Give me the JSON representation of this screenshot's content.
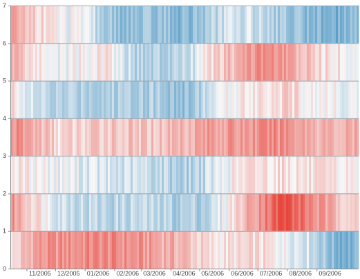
{
  "chart_data": {
    "type": "heatmap",
    "title": "",
    "xlabel": "",
    "ylabel": "",
    "ylim": [
      0,
      7
    ],
    "y_ticks": [
      "0",
      "1",
      "2",
      "3",
      "4",
      "5",
      "6",
      "7"
    ],
    "x_ticks": [
      "11/2005",
      "12/2005",
      "01/2006",
      "02/2006",
      "03/2006",
      "04/2006",
      "05/2006",
      "06/2006",
      "07/2006",
      "08/2006",
      "09/2006"
    ],
    "x_range": [
      "2005-10-15",
      "2006-10-15"
    ],
    "grid": false,
    "legend": "none",
    "colorscale": {
      "negative": "#e8453c",
      "neutral": "#f7f7f7",
      "positive": "#2b83ba"
    },
    "bands": [
      {
        "y_from": 0,
        "y_to": 1,
        "anchors": [
          0.05,
          0.5,
          0.55,
          0.6,
          0.6,
          0.55,
          0.45,
          0.35,
          0.1,
          0.1,
          0.15,
          0.0,
          -0.15,
          -0.55,
          -0.6
        ]
      },
      {
        "y_from": 1,
        "y_to": 2,
        "anchors": [
          0.55,
          0.2,
          -0.15,
          -0.25,
          -0.3,
          -0.25,
          -0.3,
          -0.35,
          -0.3,
          0.15,
          0.6,
          0.95,
          0.65,
          0.35,
          0.25
        ]
      },
      {
        "y_from": 2,
        "y_to": 3,
        "anchors": [
          0.1,
          0.05,
          -0.05,
          -0.1,
          -0.2,
          -0.2,
          -0.25,
          -0.35,
          -0.2,
          0.05,
          0.15,
          0.15,
          0.1,
          0.05,
          0.05
        ]
      },
      {
        "y_from": 3,
        "y_to": 4,
        "anchors": [
          0.6,
          0.4,
          0.15,
          0.2,
          0.3,
          0.25,
          0.3,
          0.4,
          0.5,
          0.5,
          0.55,
          0.6,
          0.45,
          0.35,
          0.4
        ]
      },
      {
        "y_from": 4,
        "y_to": 5,
        "anchors": [
          0.2,
          -0.25,
          -0.35,
          -0.3,
          -0.35,
          -0.3,
          -0.35,
          -0.5,
          -0.2,
          0.05,
          0.15,
          0.2,
          0.05,
          0.0,
          -0.05
        ]
      },
      {
        "y_from": 5,
        "y_to": 6,
        "anchors": [
          0.45,
          0.1,
          -0.05,
          0.05,
          0.1,
          -0.3,
          -0.35,
          -0.3,
          0.1,
          0.35,
          0.6,
          0.5,
          0.25,
          0.1,
          0.0
        ]
      },
      {
        "y_from": 6,
        "y_to": 7,
        "anchors": [
          0.45,
          0.25,
          0.0,
          -0.1,
          -0.45,
          -0.5,
          -0.45,
          -0.55,
          -0.35,
          -0.15,
          -0.2,
          -0.4,
          -0.5,
          -0.6,
          -0.55
        ]
      }
    ]
  }
}
